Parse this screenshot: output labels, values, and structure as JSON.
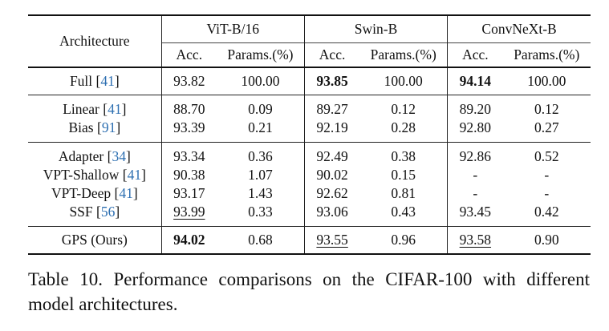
{
  "table": {
    "header": {
      "architecture": "Architecture",
      "groups": [
        "ViT-B/16",
        "Swin-B",
        "ConvNeXt-B"
      ],
      "acc": "Acc.",
      "params": "Params.(%)"
    },
    "sections": [
      [
        {
          "name": "Full",
          "cite": "41",
          "cells": [
            {
              "v": "93.82"
            },
            {
              "v": "100.00"
            },
            {
              "v": "93.85",
              "bold": true
            },
            {
              "v": "100.00"
            },
            {
              "v": "94.14",
              "bold": true
            },
            {
              "v": "100.00"
            }
          ]
        }
      ],
      [
        {
          "name": "Linear",
          "cite": "41",
          "cells": [
            {
              "v": "88.70"
            },
            {
              "v": "0.09"
            },
            {
              "v": "89.27"
            },
            {
              "v": "0.12"
            },
            {
              "v": "89.20"
            },
            {
              "v": "0.12"
            }
          ]
        },
        {
          "name": "Bias",
          "cite": "91",
          "cells": [
            {
              "v": "93.39"
            },
            {
              "v": "0.21"
            },
            {
              "v": "92.19"
            },
            {
              "v": "0.28"
            },
            {
              "v": "92.80"
            },
            {
              "v": "0.27"
            }
          ]
        }
      ],
      [
        {
          "name": "Adapter",
          "cite": "34",
          "cells": [
            {
              "v": "93.34"
            },
            {
              "v": "0.36"
            },
            {
              "v": "92.49"
            },
            {
              "v": "0.38"
            },
            {
              "v": "92.86"
            },
            {
              "v": "0.52"
            }
          ]
        },
        {
          "name": "VPT-Shallow",
          "cite": "41",
          "cells": [
            {
              "v": "90.38"
            },
            {
              "v": "1.07"
            },
            {
              "v": "90.02"
            },
            {
              "v": "0.15"
            },
            {
              "v": "-"
            },
            {
              "v": "-"
            }
          ]
        },
        {
          "name": "VPT-Deep",
          "cite": "41",
          "cells": [
            {
              "v": "93.17"
            },
            {
              "v": "1.43"
            },
            {
              "v": "92.62"
            },
            {
              "v": "0.81"
            },
            {
              "v": "-"
            },
            {
              "v": "-"
            }
          ]
        },
        {
          "name": "SSF",
          "cite": "56",
          "cells": [
            {
              "v": "93.99",
              "underline": true
            },
            {
              "v": "0.33"
            },
            {
              "v": "93.06"
            },
            {
              "v": "0.43"
            },
            {
              "v": "93.45"
            },
            {
              "v": "0.42"
            }
          ]
        }
      ],
      [
        {
          "name": "GPS (Ours)",
          "cite": "",
          "cells": [
            {
              "v": "94.02",
              "bold": true
            },
            {
              "v": "0.68"
            },
            {
              "v": "93.55",
              "underline": true
            },
            {
              "v": "0.96"
            },
            {
              "v": "93.58",
              "underline": true
            },
            {
              "v": "0.90"
            }
          ]
        }
      ]
    ]
  },
  "caption": "Table 10. Performance comparisons on the CIFAR-100 with different model architectures."
}
